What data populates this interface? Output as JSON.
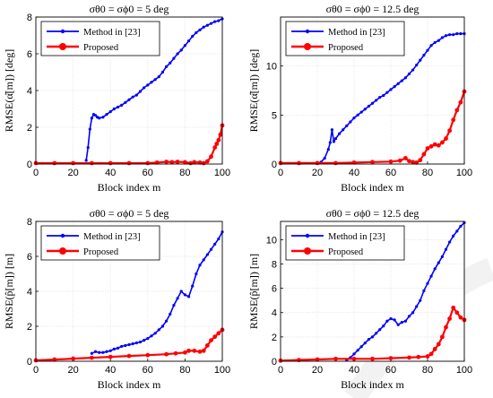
{
  "colors": {
    "method": "#0000ff",
    "proposed": "#ff0000",
    "grid": "#dcdcdc"
  },
  "chart_data": [
    {
      "type": "line",
      "title": "σθ0 = σϕ0 = 5 deg",
      "xlabel": "Block index m",
      "ylabel": "RMSE(α̂[m]) [deg]",
      "xlim": [
        0,
        100
      ],
      "ylim": [
        0,
        8
      ],
      "xticks": [
        "0",
        "20",
        "40",
        "60",
        "80",
        "100"
      ],
      "yticks": [
        "0",
        "2",
        "4",
        "6",
        "8"
      ],
      "legend": "top-left",
      "grid": true,
      "series": [
        {
          "name": "Method in [23]",
          "key": "method",
          "x": [
            27,
            28,
            29,
            30,
            31,
            32,
            33,
            34,
            36,
            38,
            40,
            42,
            44,
            46,
            48,
            50,
            52,
            54,
            56,
            58,
            60,
            62,
            64,
            66,
            68,
            70,
            72,
            74,
            76,
            78,
            80,
            82,
            84,
            86,
            88,
            90,
            92,
            94,
            96,
            98,
            100
          ],
          "y": [
            0.2,
            0.9,
            1.9,
            2.5,
            2.7,
            2.65,
            2.55,
            2.5,
            2.55,
            2.7,
            2.85,
            3.0,
            3.1,
            3.2,
            3.35,
            3.5,
            3.65,
            3.75,
            3.95,
            4.15,
            4.3,
            4.45,
            4.6,
            4.75,
            5.0,
            5.3,
            5.5,
            5.75,
            6.0,
            6.2,
            6.45,
            6.7,
            6.95,
            7.15,
            7.3,
            7.45,
            7.55,
            7.65,
            7.75,
            7.8,
            7.9
          ]
        },
        {
          "name": "Proposed",
          "key": "proposed",
          "x": [
            0,
            10,
            20,
            30,
            40,
            50,
            60,
            65,
            70,
            73,
            76,
            80,
            83,
            85,
            88,
            90,
            92,
            94,
            96,
            97,
            98,
            99,
            100
          ],
          "y": [
            0.05,
            0.05,
            0.05,
            0.05,
            0.05,
            0.05,
            0.05,
            0.08,
            0.12,
            0.1,
            0.12,
            0.1,
            0.05,
            0.1,
            0.08,
            0.05,
            0.15,
            0.4,
            0.9,
            1.1,
            1.3,
            1.6,
            2.1
          ]
        }
      ]
    },
    {
      "type": "line",
      "title": "σθ0 = σϕ0 = 12.5 deg",
      "xlabel": "Block index m",
      "ylabel": "RMSE(α̂[m]) [deg]",
      "xlim": [
        0,
        100
      ],
      "ylim": [
        0,
        15
      ],
      "xticks": [
        "0",
        "20",
        "40",
        "60",
        "80",
        "100"
      ],
      "yticks": [
        "0",
        "5",
        "10"
      ],
      "legend": "top-left",
      "grid": true,
      "series": [
        {
          "name": "Method in [23]",
          "key": "method",
          "x": [
            22,
            24,
            26,
            27,
            28,
            29,
            30,
            32,
            34,
            36,
            38,
            40,
            42,
            44,
            46,
            48,
            50,
            52,
            54,
            56,
            58,
            60,
            62,
            64,
            66,
            68,
            70,
            72,
            74,
            76,
            78,
            80,
            82,
            84,
            86,
            88,
            90,
            92,
            94,
            96,
            98,
            100
          ],
          "y": [
            0.2,
            0.6,
            1.5,
            2.2,
            3.5,
            2.3,
            2.6,
            3.1,
            3.5,
            3.9,
            4.3,
            4.7,
            5.0,
            5.3,
            5.6,
            5.9,
            6.2,
            6.5,
            6.8,
            7.0,
            7.3,
            7.6,
            7.9,
            8.2,
            8.5,
            8.8,
            9.2,
            9.6,
            10.1,
            10.6,
            11.1,
            11.6,
            12.1,
            12.4,
            12.6,
            12.9,
            13.1,
            13.2,
            13.2,
            13.3,
            13.3,
            13.3
          ]
        },
        {
          "name": "Proposed",
          "key": "proposed",
          "x": [
            0,
            10,
            20,
            30,
            40,
            50,
            60,
            65,
            68,
            70,
            72,
            74,
            76,
            78,
            80,
            82,
            84,
            86,
            88,
            90,
            92,
            94,
            96,
            98,
            100
          ],
          "y": [
            0.1,
            0.1,
            0.1,
            0.1,
            0.15,
            0.2,
            0.25,
            0.35,
            0.6,
            0.3,
            0.2,
            0.15,
            0.4,
            1.0,
            1.6,
            1.8,
            2.0,
            1.9,
            2.2,
            2.6,
            3.4,
            4.5,
            5.5,
            6.3,
            7.4
          ]
        }
      ]
    },
    {
      "type": "line",
      "title": "σθ0 = σϕ0 = 5 deg",
      "xlabel": "Block index m",
      "ylabel": "RMSE(p̂[m]) [m]",
      "xlim": [
        0,
        100
      ],
      "ylim": [
        0,
        8
      ],
      "xticks": [
        "0",
        "20",
        "40",
        "60",
        "80",
        "100"
      ],
      "yticks": [
        "0",
        "2",
        "4",
        "6",
        "8"
      ],
      "legend": "top-left",
      "grid": true,
      "series": [
        {
          "name": "Method in [23]",
          "key": "method",
          "x": [
            30,
            32,
            34,
            36,
            38,
            40,
            42,
            44,
            46,
            48,
            50,
            52,
            54,
            56,
            58,
            60,
            62,
            64,
            66,
            68,
            70,
            72,
            74,
            76,
            78,
            80,
            82,
            84,
            86,
            88,
            90,
            92,
            94,
            96,
            98,
            100
          ],
          "y": [
            0.45,
            0.55,
            0.5,
            0.5,
            0.55,
            0.6,
            0.7,
            0.75,
            0.85,
            0.9,
            0.95,
            1.0,
            1.05,
            1.1,
            1.2,
            1.3,
            1.45,
            1.6,
            1.8,
            2.0,
            2.3,
            2.7,
            3.2,
            3.6,
            4.0,
            3.8,
            3.7,
            4.3,
            5.0,
            5.5,
            5.8,
            6.1,
            6.4,
            6.7,
            7.0,
            7.4
          ]
        },
        {
          "name": "Proposed",
          "key": "proposed",
          "x": [
            0,
            10,
            20,
            30,
            40,
            50,
            60,
            70,
            75,
            80,
            82,
            85,
            88,
            90,
            92,
            94,
            96,
            98,
            100
          ],
          "y": [
            0.05,
            0.1,
            0.15,
            0.2,
            0.25,
            0.3,
            0.35,
            0.4,
            0.45,
            0.5,
            0.6,
            0.6,
            0.55,
            0.6,
            0.9,
            1.2,
            1.4,
            1.6,
            1.8
          ]
        }
      ]
    },
    {
      "type": "line",
      "title": "σθ0 = σϕ0 = 12.5 deg",
      "xlabel": "Block index m",
      "ylabel": "RMSE(p̂[m]) [m]",
      "xlim": [
        0,
        100
      ],
      "ylim": [
        0,
        11.5
      ],
      "xticks": [
        "0",
        "20",
        "40",
        "60",
        "80",
        "100"
      ],
      "yticks": [
        "0",
        "2",
        "4",
        "6",
        "8",
        "10"
      ],
      "legend": "top-left",
      "grid": true,
      "series": [
        {
          "name": "Method in [23]",
          "key": "method",
          "x": [
            36,
            38,
            40,
            42,
            44,
            46,
            48,
            50,
            52,
            54,
            56,
            58,
            60,
            62,
            64,
            66,
            68,
            70,
            72,
            74,
            76,
            78,
            80,
            82,
            84,
            86,
            88,
            90,
            92,
            94,
            96,
            98,
            100
          ],
          "y": [
            0.1,
            0.3,
            0.6,
            0.9,
            1.2,
            1.5,
            1.8,
            2.0,
            2.3,
            2.6,
            2.9,
            3.3,
            3.5,
            3.4,
            3.0,
            3.2,
            3.3,
            3.7,
            4.0,
            4.5,
            5.0,
            5.8,
            6.4,
            7.0,
            7.6,
            8.1,
            8.6,
            9.2,
            9.8,
            10.3,
            10.7,
            11.1,
            11.4
          ]
        },
        {
          "name": "Proposed",
          "key": "proposed",
          "x": [
            0,
            10,
            20,
            30,
            40,
            50,
            60,
            70,
            75,
            80,
            82,
            84,
            86,
            88,
            90,
            92,
            94,
            96,
            98,
            100
          ],
          "y": [
            0.05,
            0.1,
            0.15,
            0.2,
            0.2,
            0.2,
            0.25,
            0.3,
            0.35,
            0.4,
            0.6,
            1.0,
            1.4,
            2.0,
            2.8,
            3.5,
            4.4,
            4.0,
            3.6,
            3.4
          ]
        }
      ]
    }
  ]
}
